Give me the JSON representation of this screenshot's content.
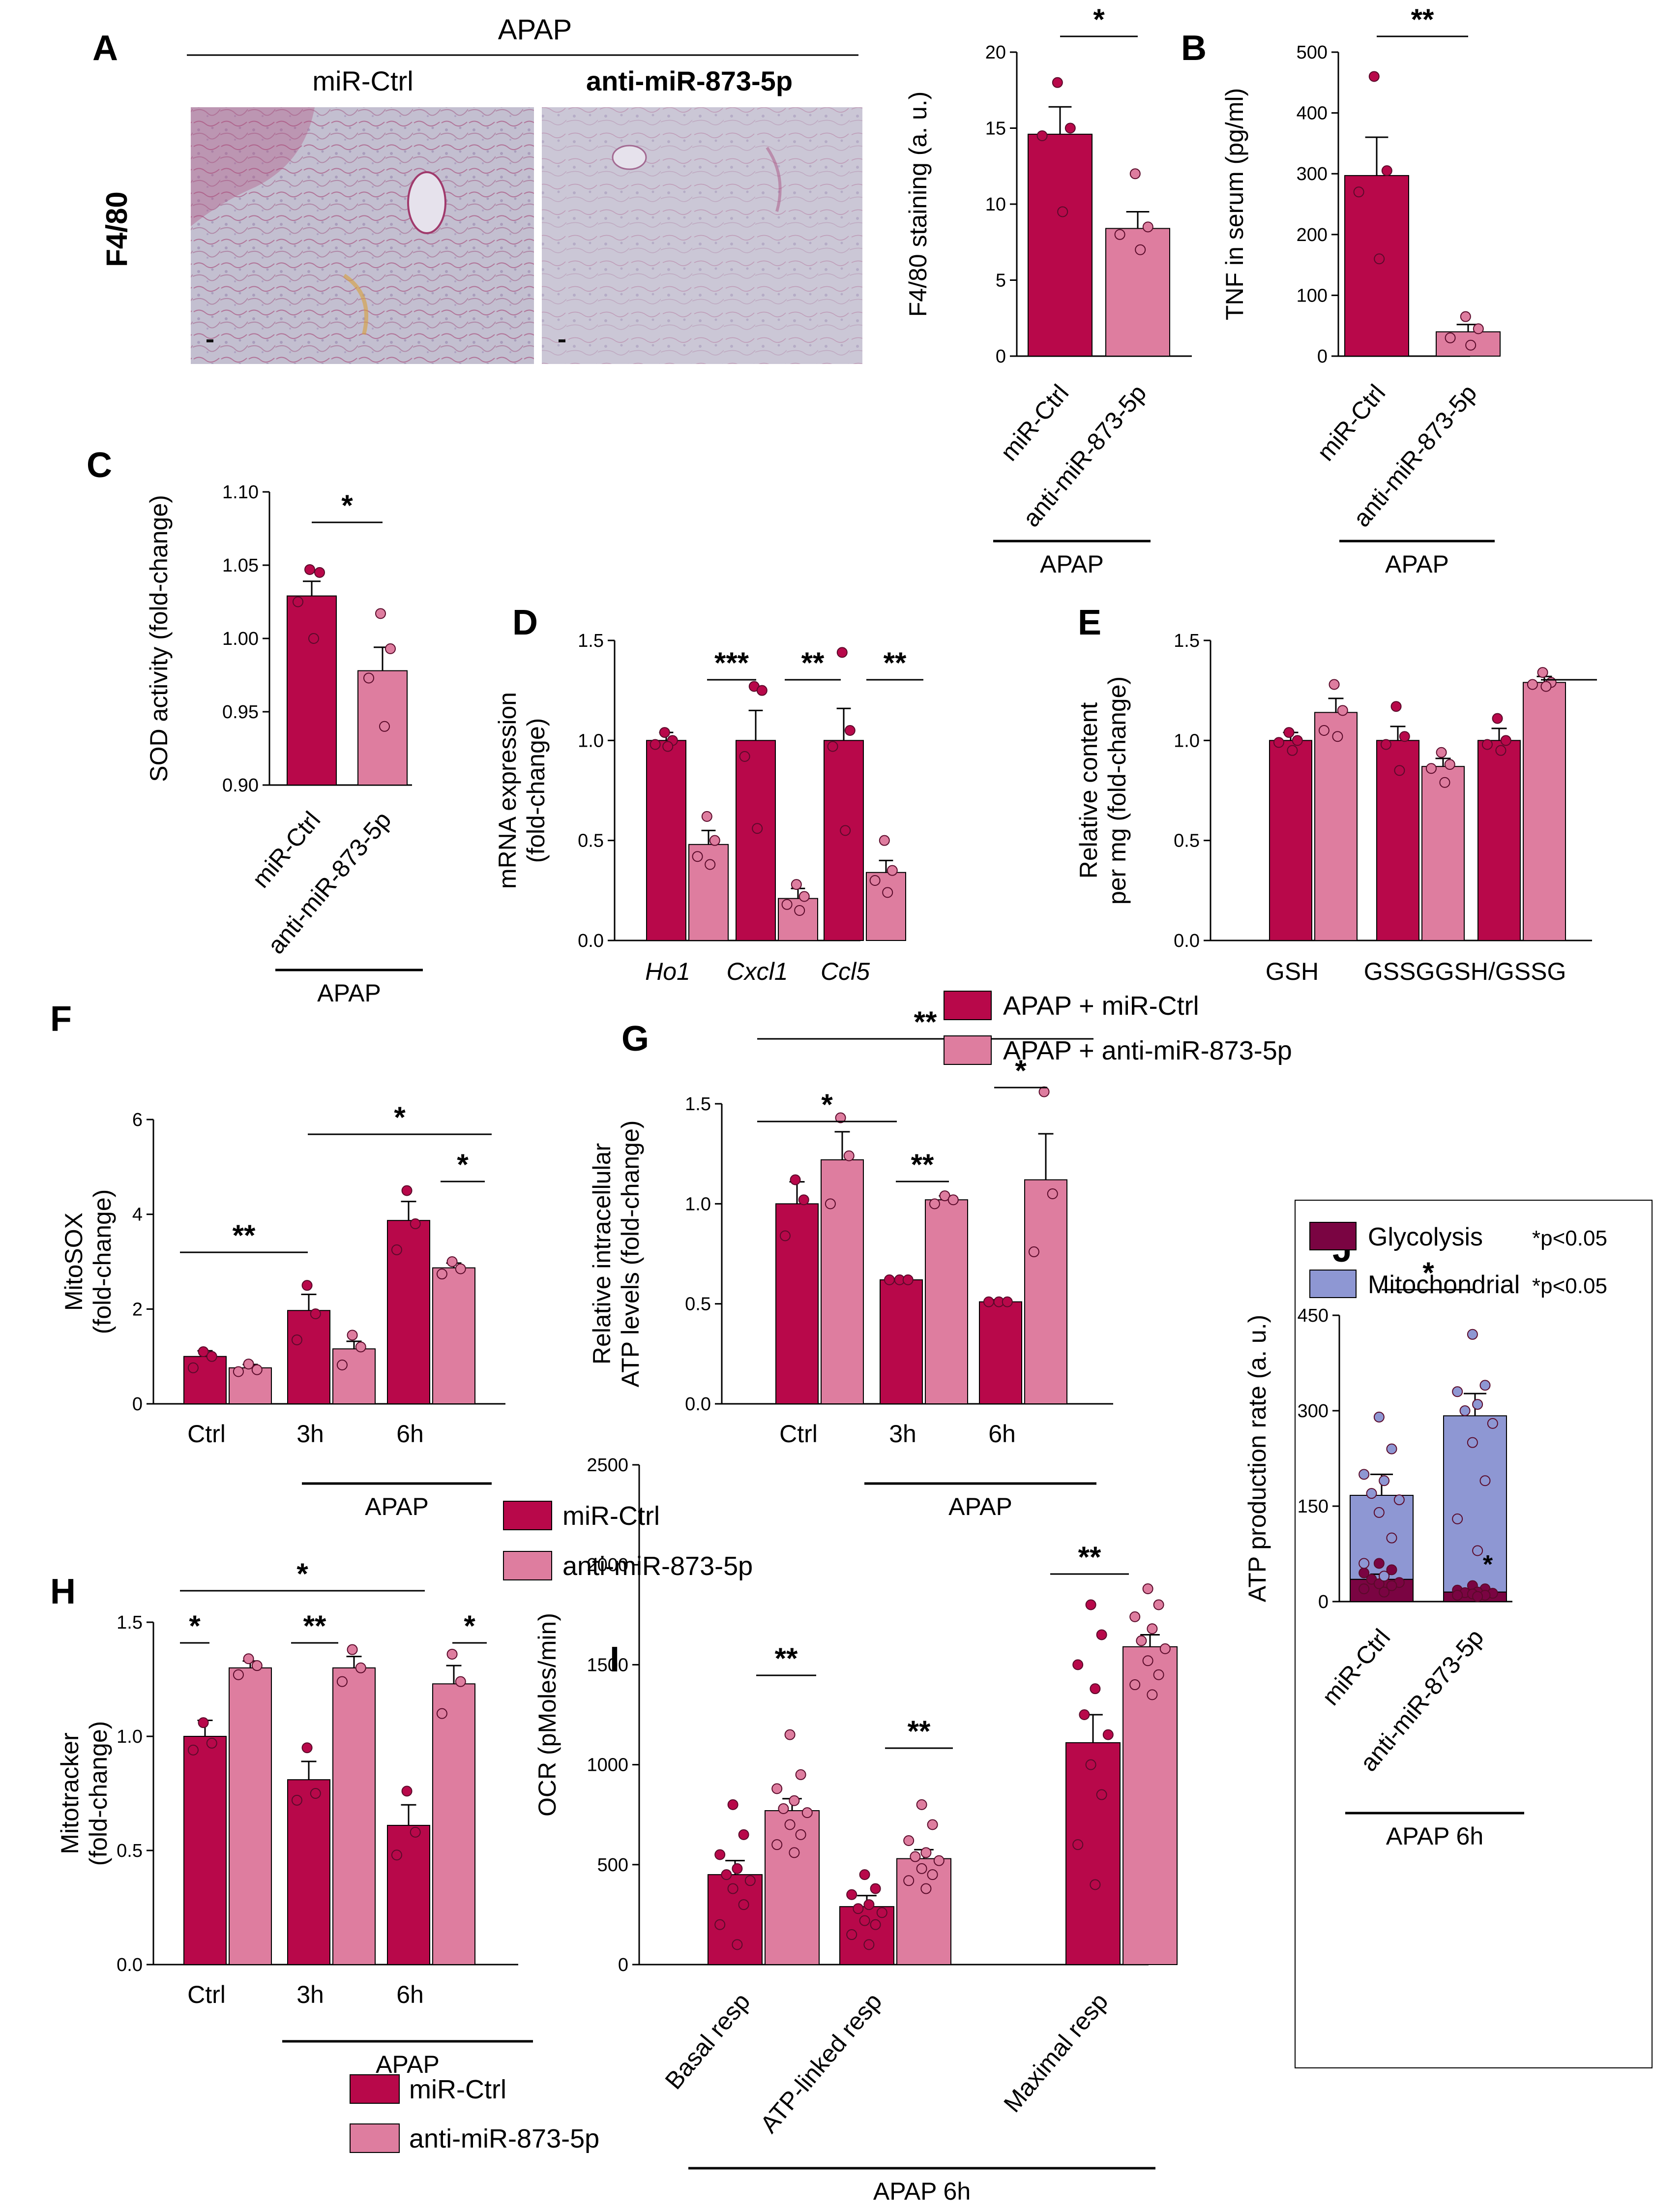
{
  "colors": {
    "ctrl": "#B8084A",
    "anti": "#DE7D9F",
    "glyco": "#7A0442",
    "mito": "#8E97D3",
    "tissue": "#C9C4D4"
  },
  "legends": {
    "fg": [
      "APAP + miR-Ctrl",
      "APAP + anti-miR-873-5p"
    ],
    "fh1": [
      "miR-Ctrl",
      "anti-miR-873-5p"
    ],
    "hi": [
      "miR-Ctrl",
      "anti-miR-873-5p"
    ]
  },
  "histology": {
    "header": "APAP",
    "row_label": "F4/80",
    "panels": [
      "miR-Ctrl",
      "anti-miR-873-5p"
    ]
  },
  "panel_letters": [
    "A",
    "B",
    "C",
    "D",
    "E",
    "F",
    "G",
    "H",
    "I",
    "J"
  ],
  "chart_data": [
    {
      "id": "a",
      "letter": "A",
      "type": "bar",
      "ylabel": "F4/80 staining (a. u.)",
      "ylim": [
        0,
        20
      ],
      "yticks": [
        "0",
        "5",
        "10",
        "15",
        "20"
      ],
      "categories": [
        "miR-Ctrl",
        "anti-miR-873-5p"
      ],
      "group_label": "APAP",
      "values": [
        14.6,
        8.4
      ],
      "errors": [
        1.8,
        1.1
      ],
      "points": [
        [
          18.0,
          15.0,
          14.5,
          9.5
        ],
        [
          12.0,
          8.5,
          8.0,
          7.0
        ]
      ],
      "significance": [
        {
          "label": "*"
        }
      ]
    },
    {
      "id": "b",
      "letter": "B",
      "type": "bar",
      "ylabel": "TNF in serum (pg/ml)",
      "ylim": [
        0,
        500
      ],
      "yticks": [
        "0",
        "100",
        "200",
        "300",
        "400",
        "500"
      ],
      "categories": [
        "miR-Ctrl",
        "anti-miR-873-5p"
      ],
      "group_label": "APAP",
      "values": [
        297,
        40
      ],
      "errors": [
        63,
        12
      ],
      "points": [
        [
          460,
          305,
          270,
          160
        ],
        [
          65,
          45,
          30,
          18
        ]
      ],
      "significance": [
        {
          "label": "**"
        }
      ]
    },
    {
      "id": "c",
      "letter": "C",
      "type": "bar",
      "ylabel": "SOD activity (fold-change)",
      "ylim": [
        0.9,
        1.1
      ],
      "yticks": [
        "0.90",
        "0.95",
        "1.00",
        "1.05",
        "1.10"
      ],
      "categories": [
        "miR-Ctrl",
        "anti-miR-873-5p"
      ],
      "group_label": "APAP",
      "values": [
        1.029,
        0.978
      ],
      "errors": [
        0.01,
        0.016
      ],
      "points": [
        [
          1.047,
          1.045,
          1.025,
          1.0
        ],
        [
          1.017,
          0.993,
          0.973,
          0.94
        ]
      ],
      "significance": [
        {
          "label": "*"
        }
      ]
    },
    {
      "id": "d",
      "letter": "D",
      "type": "bar",
      "ylabel": [
        "mRNA expression",
        "(fold-change)"
      ],
      "ylim": [
        0,
        1.5
      ],
      "yticks": [
        "0.0",
        "0.5",
        "1.0",
        "1.5"
      ],
      "categories": [
        "Ho1",
        "Cxcl1",
        "Ccl5"
      ],
      "series": [
        {
          "name": "APAP + miR-Ctrl",
          "values": [
            1.0,
            1.0,
            1.0
          ],
          "errors": [
            0.04,
            0.15,
            0.16
          ],
          "points": [
            [
              1.04,
              1.0,
              0.98,
              0.97
            ],
            [
              1.27,
              1.25,
              0.92,
              0.56
            ],
            [
              1.44,
              1.05,
              0.97,
              0.55
            ]
          ]
        },
        {
          "name": "APAP + anti-miR-873-5p",
          "values": [
            0.48,
            0.21,
            0.34
          ],
          "errors": [
            0.07,
            0.05,
            0.06
          ],
          "points": [
            [
              0.62,
              0.5,
              0.42,
              0.38
            ],
            [
              0.28,
              0.22,
              0.18,
              0.15
            ],
            [
              0.5,
              0.35,
              0.3,
              0.24
            ]
          ]
        }
      ],
      "significance": [
        {
          "label": "***"
        },
        {
          "label": "**"
        },
        {
          "label": "**"
        }
      ]
    },
    {
      "id": "e",
      "letter": "E",
      "type": "bar",
      "ylabel": [
        "Relative content",
        "per mg (fold-change)"
      ],
      "ylim": [
        0,
        1.5
      ],
      "yticks": [
        "0.0",
        "0.5",
        "1.0",
        "1.5"
      ],
      "categories": [
        "GSH",
        "GSSG",
        "GSH/GSSG"
      ],
      "series": [
        {
          "name": "APAP + miR-Ctrl",
          "values": [
            1.0,
            1.0,
            1.0
          ],
          "errors": [
            0.04,
            0.07,
            0.06
          ],
          "points": [
            [
              1.04,
              1.0,
              0.99,
              0.95
            ],
            [
              1.17,
              1.02,
              0.98,
              0.85
            ],
            [
              1.11,
              1.0,
              0.98,
              0.95
            ]
          ]
        },
        {
          "name": "APAP + anti-miR-873-5p",
          "values": [
            1.14,
            0.87,
            1.29
          ],
          "errors": [
            0.07,
            0.04,
            0.03
          ],
          "points": [
            [
              1.28,
              1.15,
              1.05,
              1.02
            ],
            [
              0.94,
              0.88,
              0.86,
              0.79
            ],
            [
              1.34,
              1.29,
              1.28,
              1.27
            ]
          ]
        }
      ],
      "significance": [
        {
          "label": ""
        },
        {
          "label": ""
        },
        {
          "label": "**"
        }
      ]
    },
    {
      "id": "f",
      "letter": "F",
      "type": "bar",
      "ylabel": [
        "MitoSOX",
        "(fold-change)"
      ],
      "ylim": [
        0,
        6
      ],
      "yticks": [
        "0",
        "2",
        "4",
        "6"
      ],
      "categories": [
        "Ctrl",
        "3h",
        "6h"
      ],
      "group_label": "APAP",
      "series": [
        {
          "name": "miR-Ctrl",
          "values": [
            1.0,
            1.97,
            3.87
          ],
          "errors": [
            0.12,
            0.34,
            0.4
          ],
          "points": [
            [
              1.1,
              1.0,
              0.76
            ],
            [
              2.5,
              1.9,
              1.35
            ],
            [
              4.5,
              3.8,
              3.25
            ]
          ]
        },
        {
          "name": "anti-miR-873-5p",
          "values": [
            0.76,
            1.16,
            2.87
          ],
          "errors": [
            0.07,
            0.16,
            0.1
          ],
          "points": [
            [
              0.84,
              0.72,
              0.68
            ],
            [
              1.45,
              1.2,
              0.82
            ],
            [
              3.0,
              2.85,
              2.74
            ]
          ]
        }
      ],
      "significance": [
        {
          "label": "**"
        },
        {
          "label": "*"
        },
        {
          "label": "*"
        }
      ]
    },
    {
      "id": "g",
      "letter": "G",
      "type": "bar",
      "ylabel": [
        "Relative intracellular",
        "ATP levels (fold-change)"
      ],
      "ylim": [
        0,
        1.5
      ],
      "yticks": [
        "0.0",
        "0.5",
        "1.0",
        "1.5"
      ],
      "categories": [
        "Ctrl",
        "3h",
        "6h"
      ],
      "group_label": "APAP",
      "series": [
        {
          "name": "APAP + miR-Ctrl",
          "values": [
            1.0,
            0.62,
            0.51
          ],
          "errors": [
            0.11,
            0.0,
            0.01
          ],
          "points": [
            [
              1.12,
              1.02,
              0.84
            ],
            [
              0.62,
              0.62,
              0.62
            ],
            [
              0.51,
              0.51,
              0.51
            ]
          ]
        },
        {
          "name": "APAP + anti-miR-873-5p",
          "values": [
            1.22,
            1.02,
            1.12
          ],
          "errors": [
            0.14,
            0.02,
            0.23
          ],
          "points": [
            [
              1.43,
              1.24,
              1.0
            ],
            [
              1.04,
              1.02,
              1.0
            ],
            [
              1.56,
              1.05,
              0.76
            ]
          ]
        }
      ],
      "significance": [
        {
          "label": "*"
        },
        {
          "label": "**"
        },
        {
          "label": "*"
        },
        {
          "label": "**"
        }
      ]
    },
    {
      "id": "h",
      "letter": "H",
      "type": "bar",
      "ylabel": [
        "Mitotracker",
        "(fold-change)"
      ],
      "ylim": [
        0,
        1.5
      ],
      "yticks": [
        "0.0",
        "0.5",
        "1.0",
        "1.5"
      ],
      "categories": [
        "Ctrl",
        "3h",
        "6h"
      ],
      "group_label": "APAP",
      "series": [
        {
          "name": "miR-Ctrl",
          "values": [
            1.0,
            0.81,
            0.61
          ],
          "errors": [
            0.07,
            0.08,
            0.09
          ],
          "points": [
            [
              1.06,
              0.97,
              0.94
            ],
            [
              0.95,
              0.75,
              0.72
            ],
            [
              0.76,
              0.58,
              0.48
            ]
          ]
        },
        {
          "name": "anti-miR-873-5p",
          "values": [
            1.3,
            1.3,
            1.23
          ],
          "errors": [
            0.03,
            0.05,
            0.08
          ],
          "points": [
            [
              1.34,
              1.31,
              1.27
            ],
            [
              1.38,
              1.3,
              1.24
            ],
            [
              1.36,
              1.24,
              1.1
            ]
          ]
        }
      ],
      "significance": [
        {
          "label": "*"
        },
        {
          "label": "**"
        },
        {
          "label": "*"
        },
        {
          "label": "*"
        }
      ]
    },
    {
      "id": "i",
      "letter": "I",
      "type": "bar",
      "ylabel": "OCR (pMoles/min)",
      "ylim": [
        0,
        2500
      ],
      "yticks": [
        "0",
        "500",
        "1000",
        "1500",
        "2000",
        "2500"
      ],
      "categories": [
        "Basal resp",
        "ATP-linked resp",
        "Maximal resp"
      ],
      "group_label": "APAP 6h",
      "series": [
        {
          "name": "miR-Ctrl",
          "values": [
            450,
            290,
            1110
          ],
          "errors": [
            70,
            55,
            140
          ],
          "points": [
            [
              800,
              650,
              550,
              480,
              450,
              420,
              380,
              300,
              200,
              100
            ],
            [
              450,
              380,
              350,
              300,
              280,
              260,
              220,
              200,
              150,
              100
            ],
            [
              1800,
              1650,
              1500,
              1380,
              1250,
              1150,
              1000,
              850,
              600,
              400
            ]
          ]
        },
        {
          "name": "anti-miR-873-5p",
          "values": [
            770,
            530,
            1590
          ],
          "errors": [
            60,
            45,
            60
          ],
          "points": [
            [
              1150,
              950,
              880,
              820,
              780,
              760,
              700,
              650,
              600,
              560
            ],
            [
              800,
              700,
              620,
              560,
              540,
              520,
              480,
              450,
              420,
              380
            ],
            [
              1880,
              1800,
              1740,
              1680,
              1620,
              1580,
              1520,
              1450,
              1400,
              1350
            ]
          ]
        }
      ],
      "significance": [
        {
          "label": "**"
        },
        {
          "label": "**"
        },
        {
          "label": "**"
        }
      ]
    },
    {
      "id": "j",
      "letter": "J",
      "type": "bar",
      "ylabel": "ATP production rate (a. u.)",
      "ylim": [
        0,
        450
      ],
      "yticks": [
        "0",
        "150",
        "300",
        "450"
      ],
      "categories": [
        "miR-Ctrl",
        "anti-miR-873-5p"
      ],
      "group_label": "APAP 6h",
      "stacks": [
        {
          "name": "Glycolysis",
          "note": "*p<0.05",
          "values": [
            35,
            15
          ],
          "errors": [
            8,
            3
          ],
          "points": [
            [
              60,
              50,
              45,
              40,
              35,
              30,
              28,
              25,
              20,
              15
            ],
            [
              25,
              20,
              18,
              15,
              14,
              13,
              12,
              10,
              10,
              8
            ]
          ]
        },
        {
          "name": "Mitochondrial",
          "note": "*p<0.05",
          "values": [
            132,
            277
          ],
          "errors": [
            33,
            35
          ],
          "points": [
            [
              290,
              240,
              200,
              190,
              170,
              160,
              140,
              100,
              60,
              40
            ],
            [
              420,
              340,
              330,
              310,
              300,
              280,
              250,
              190,
              130,
              80
            ]
          ]
        }
      ],
      "significance": [
        {
          "label": "*"
        },
        {
          "label": "*"
        }
      ]
    }
  ]
}
